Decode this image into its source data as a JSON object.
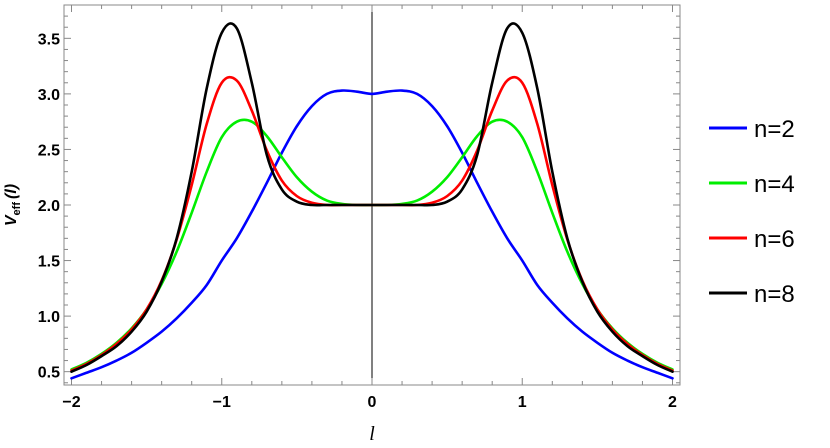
{
  "chart_data": {
    "type": "line",
    "title": "",
    "xlabel": "l",
    "ylabel": {
      "main": "V",
      "sub": "eff",
      "arg": "(l)"
    },
    "xlim": [
      -2.05,
      2.05
    ],
    "ylim": [
      0.38,
      3.8
    ],
    "x_ticks": [
      -2,
      -1,
      0,
      1,
      2
    ],
    "x_tick_labels": [
      "-2",
      "-1",
      "0",
      "1",
      "2"
    ],
    "y_ticks": [
      0.5,
      1.0,
      1.5,
      2.0,
      2.5,
      3.0,
      3.5
    ],
    "y_tick_labels": [
      "0.5",
      "1.0",
      "1.5",
      "2.0",
      "2.5",
      "3.0",
      "3.5"
    ],
    "grid": false,
    "legend_position": "right",
    "x": [
      -2.0,
      -1.9,
      -1.8,
      -1.7,
      -1.6,
      -1.5,
      -1.4,
      -1.3,
      -1.2,
      -1.1,
      -1.0,
      -0.9,
      -0.8,
      -0.7,
      -0.6,
      -0.5,
      -0.4,
      -0.3,
      -0.2,
      -0.1,
      0.0,
      0.1,
      0.2,
      0.3,
      0.4,
      0.5,
      0.6,
      0.7,
      0.8,
      0.9,
      1.0,
      1.1,
      1.2,
      1.3,
      1.4,
      1.5,
      1.6,
      1.7,
      1.8,
      1.9,
      2.0
    ],
    "series": [
      {
        "name": "n=2",
        "color": "#0000ff",
        "values": [
          0.44,
          0.49,
          0.54,
          0.6,
          0.67,
          0.76,
          0.86,
          0.98,
          1.12,
          1.28,
          1.5,
          1.7,
          1.94,
          2.2,
          2.47,
          2.71,
          2.89,
          3.0,
          3.03,
          3.02,
          3.0,
          3.02,
          3.03,
          3.0,
          2.89,
          2.71,
          2.47,
          2.2,
          1.94,
          1.7,
          1.5,
          1.28,
          1.12,
          0.98,
          0.86,
          0.76,
          0.67,
          0.6,
          0.54,
          0.49,
          0.44
        ]
      },
      {
        "name": "n=4",
        "color": "#00ee00",
        "values": [
          0.52,
          0.58,
          0.66,
          0.76,
          0.89,
          1.06,
          1.29,
          1.58,
          1.93,
          2.3,
          2.61,
          2.75,
          2.75,
          2.62,
          2.43,
          2.25,
          2.12,
          2.04,
          2.01,
          2.0,
          2.0,
          2.0,
          2.01,
          2.04,
          2.12,
          2.25,
          2.43,
          2.62,
          2.75,
          2.75,
          2.61,
          2.3,
          1.93,
          1.58,
          1.29,
          1.06,
          0.89,
          0.76,
          0.66,
          0.58,
          0.52
        ]
      },
      {
        "name": "n=6",
        "color": "#ff0000",
        "values": [
          0.51,
          0.57,
          0.65,
          0.75,
          0.88,
          1.06,
          1.32,
          1.69,
          2.18,
          2.73,
          3.1,
          3.12,
          2.85,
          2.49,
          2.22,
          2.08,
          2.02,
          2.0,
          2.0,
          2.0,
          2.0,
          2.0,
          2.0,
          2.0,
          2.02,
          2.08,
          2.22,
          2.49,
          2.85,
          3.12,
          3.1,
          2.73,
          2.18,
          1.69,
          1.32,
          1.06,
          0.88,
          0.75,
          0.65,
          0.57,
          0.51
        ]
      },
      {
        "name": "n=8",
        "color": "#000000",
        "values": [
          0.5,
          0.56,
          0.64,
          0.73,
          0.86,
          1.04,
          1.31,
          1.7,
          2.3,
          3.05,
          3.55,
          3.59,
          3.1,
          2.45,
          2.14,
          2.03,
          2.0,
          2.0,
          2.0,
          2.0,
          2.0,
          2.0,
          2.0,
          2.0,
          2.0,
          2.03,
          2.14,
          2.45,
          3.1,
          3.59,
          3.55,
          3.05,
          2.3,
          1.7,
          1.31,
          1.04,
          0.86,
          0.73,
          0.64,
          0.56,
          0.5
        ]
      }
    ]
  }
}
